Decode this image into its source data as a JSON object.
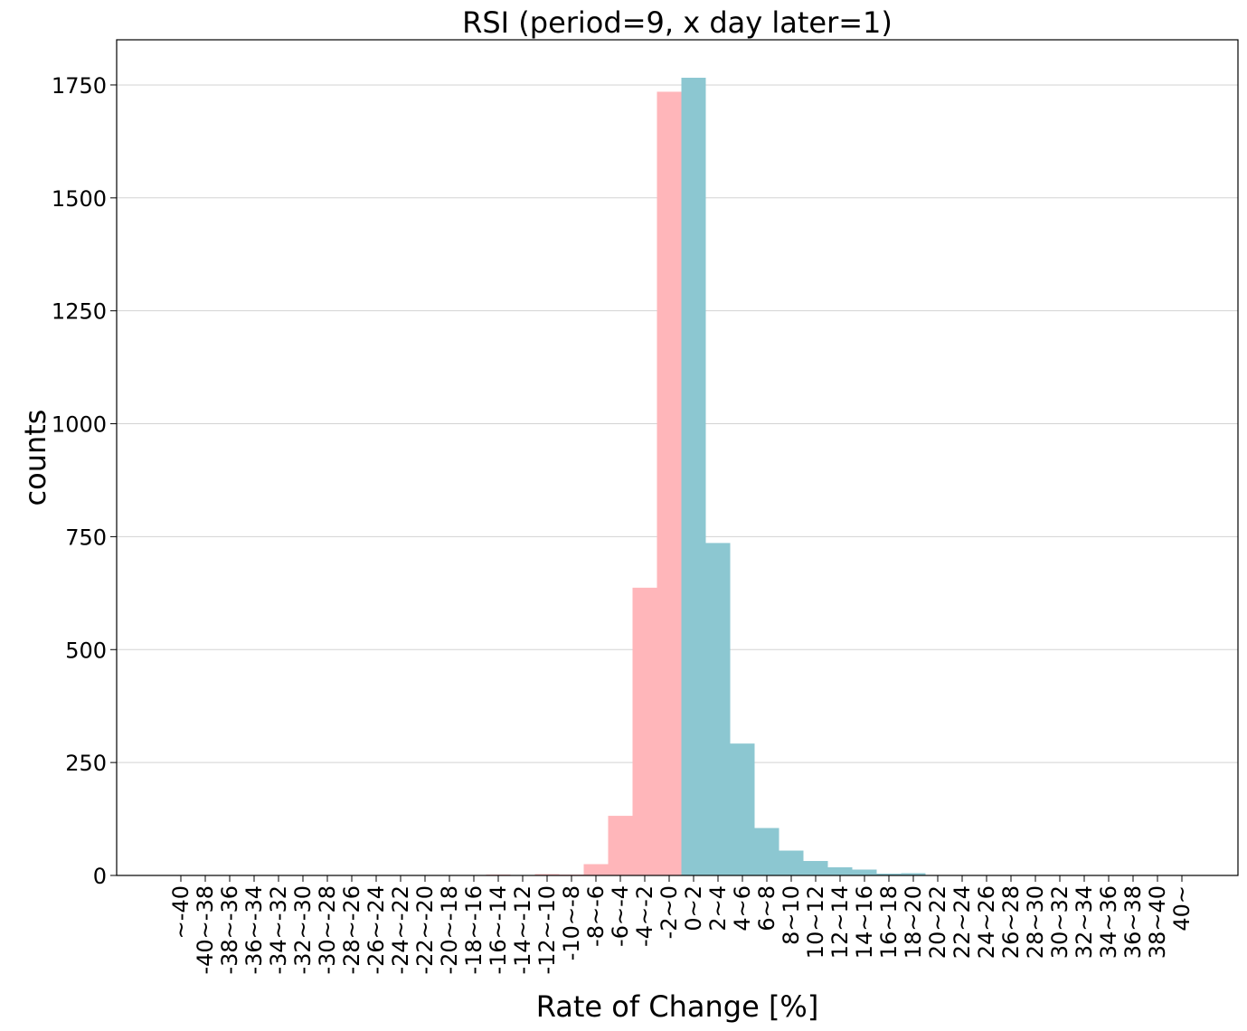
{
  "chart_data": {
    "type": "bar",
    "title": "RSI (period=9, x day later=1)",
    "xlabel": "Rate of Change [%]",
    "ylabel": "counts",
    "ylim": [
      0,
      1850
    ],
    "yticks": [
      0,
      250,
      500,
      750,
      1000,
      1250,
      1500,
      1750
    ],
    "grid": "y",
    "legend": "none",
    "colors": {
      "negative": "#ffb6ba",
      "positive": "#8cc7d1"
    },
    "categories": [
      "~-40",
      "-40~-38",
      "-38~-36",
      "-36~-34",
      "-34~-32",
      "-32~-30",
      "-30~-28",
      "-28~-26",
      "-26~-24",
      "-24~-22",
      "-22~-20",
      "-20~-18",
      "-18~-16",
      "-16~-14",
      "-14~-12",
      "-12~-10",
      "-10~-8",
      "-8~-6",
      "-6~-4",
      "-4~-2",
      "-2~0",
      "0~2",
      "2~4",
      "4~6",
      "6~8",
      "8~10",
      "10~12",
      "12~14",
      "14~16",
      "16~18",
      "18~20",
      "20~22",
      "22~24",
      "24~26",
      "26~28",
      "28~30",
      "30~32",
      "32~34",
      "34~36",
      "36~38",
      "38~40",
      "40~"
    ],
    "series": [
      {
        "color_key": "negative",
        "values": [
          0,
          0,
          0,
          0,
          0,
          0,
          0,
          0,
          0,
          0,
          0,
          0,
          0,
          2,
          1,
          3,
          2,
          25,
          132,
          637,
          1735,
          0,
          0,
          0,
          0,
          0,
          0,
          0,
          0,
          0,
          0,
          0,
          0,
          0,
          0,
          0,
          0,
          0,
          0,
          0,
          0,
          0
        ]
      },
      {
        "color_key": "positive",
        "values": [
          0,
          0,
          0,
          0,
          0,
          0,
          0,
          0,
          0,
          0,
          0,
          0,
          0,
          0,
          0,
          0,
          0,
          0,
          0,
          0,
          0,
          1766,
          736,
          292,
          105,
          55,
          32,
          18,
          13,
          4,
          5,
          1,
          0,
          0,
          0,
          0,
          0,
          0,
          0,
          0,
          0,
          0
        ]
      }
    ]
  }
}
